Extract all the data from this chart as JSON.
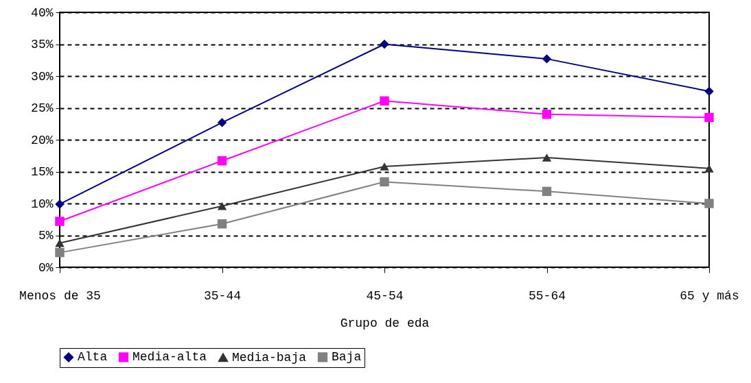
{
  "chart_data": {
    "type": "line",
    "xlabel": "Grupo de eda",
    "categories": [
      "Menos de 35",
      "35-44",
      "45-54",
      "55-64",
      "65 y más"
    ],
    "series": [
      {
        "name": "Alta",
        "color": "#000080",
        "marker": "diamond",
        "values": [
          9.9,
          22.7,
          35.0,
          32.7,
          27.6
        ]
      },
      {
        "name": "Media-alta",
        "color": "#ff00ff",
        "marker": "square",
        "values": [
          7.2,
          16.7,
          26.1,
          24.0,
          23.5
        ]
      },
      {
        "name": "Media-baja",
        "color": "#333333",
        "marker": "triangle",
        "values": [
          3.8,
          9.6,
          15.8,
          17.2,
          15.5
        ]
      },
      {
        "name": "Baja",
        "color": "#808080",
        "marker": "square",
        "values": [
          2.3,
          6.8,
          13.4,
          11.9,
          10.0
        ]
      }
    ],
    "ylim": [
      0,
      40
    ],
    "yticks": [
      {
        "value": 0,
        "label": "0%"
      },
      {
        "value": 5,
        "label": "5%"
      },
      {
        "value": 10,
        "label": "10%"
      },
      {
        "value": 15,
        "label": "15%"
      },
      {
        "value": 20,
        "label": "20%"
      },
      {
        "value": 25,
        "label": "25%"
      },
      {
        "value": 30,
        "label": "30%"
      },
      {
        "value": 35,
        "label": "35%"
      },
      {
        "value": 40,
        "label": "40%"
      }
    ],
    "grid": "y",
    "legend": "bottom",
    "line_style": "solid"
  }
}
